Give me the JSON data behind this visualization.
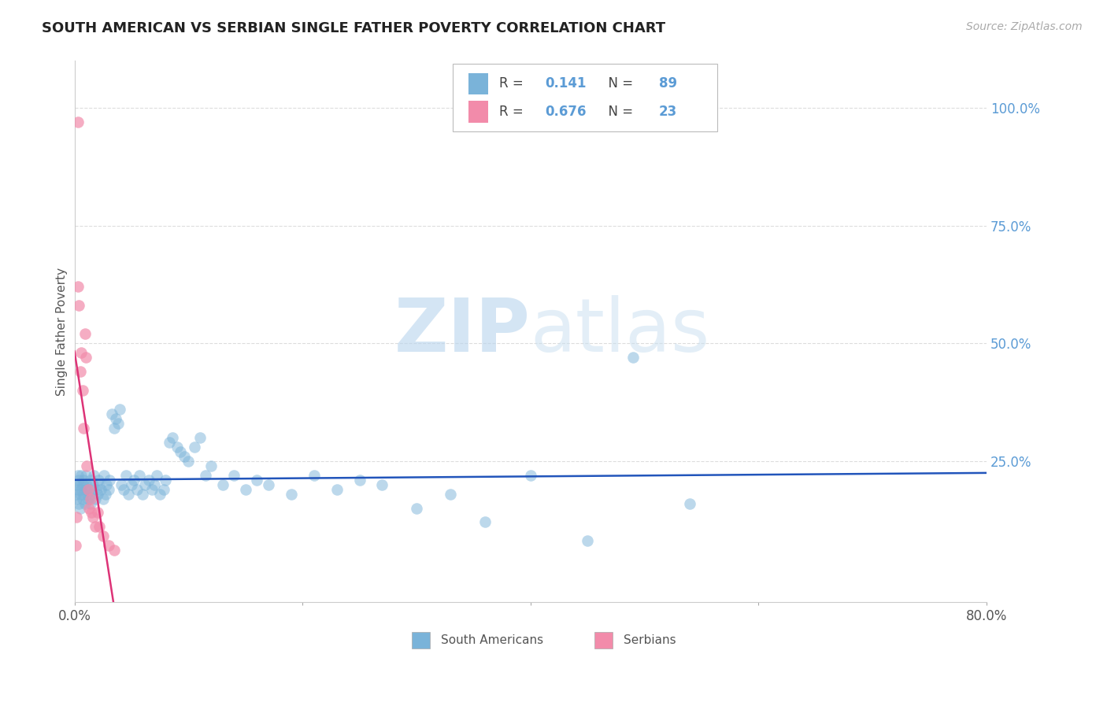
{
  "title": "SOUTH AMERICAN VS SERBIAN SINGLE FATHER POVERTY CORRELATION CHART",
  "source": "Source: ZipAtlas.com",
  "ylabel": "Single Father Poverty",
  "watermark_zip": "ZIP",
  "watermark_atlas": "atlas",
  "xlim": [
    0.0,
    0.8
  ],
  "ylim": [
    -0.05,
    1.1
  ],
  "xtick_positions": [
    0.0,
    0.2,
    0.4,
    0.6,
    0.8
  ],
  "xtick_labels": [
    "0.0%",
    "",
    "",
    "",
    "80.0%"
  ],
  "ytick_vals": [
    1.0,
    0.75,
    0.5,
    0.25
  ],
  "ytick_labels": [
    "100.0%",
    "75.0%",
    "50.0%",
    "25.0%"
  ],
  "blue_color": "#7ab3d9",
  "pink_color": "#f28baa",
  "blue_line_color": "#2255bb",
  "pink_line_color": "#dd3377",
  "grid_color": "#dddddd",
  "title_color": "#222222",
  "right_tick_color": "#5b9bd5",
  "legend_R1": "0.141",
  "legend_N1": "89",
  "legend_R2": "0.676",
  "legend_N2": "23",
  "south_american_x": [
    0.001,
    0.002,
    0.002,
    0.003,
    0.003,
    0.004,
    0.004,
    0.005,
    0.005,
    0.005,
    0.006,
    0.006,
    0.007,
    0.007,
    0.008,
    0.008,
    0.009,
    0.01,
    0.01,
    0.011,
    0.011,
    0.012,
    0.013,
    0.014,
    0.014,
    0.015,
    0.016,
    0.017,
    0.018,
    0.019,
    0.02,
    0.021,
    0.022,
    0.023,
    0.025,
    0.026,
    0.027,
    0.028,
    0.03,
    0.031,
    0.033,
    0.035,
    0.036,
    0.038,
    0.04,
    0.041,
    0.043,
    0.045,
    0.047,
    0.05,
    0.052,
    0.055,
    0.057,
    0.06,
    0.062,
    0.065,
    0.068,
    0.07,
    0.072,
    0.075,
    0.078,
    0.08,
    0.083,
    0.086,
    0.09,
    0.093,
    0.096,
    0.1,
    0.105,
    0.11,
    0.115,
    0.12,
    0.13,
    0.14,
    0.15,
    0.16,
    0.17,
    0.19,
    0.21,
    0.23,
    0.25,
    0.27,
    0.3,
    0.33,
    0.36,
    0.4,
    0.45,
    0.49,
    0.54
  ],
  "south_american_y": [
    0.18,
    0.2,
    0.17,
    0.19,
    0.22,
    0.16,
    0.21,
    0.18,
    0.2,
    0.15,
    0.19,
    0.22,
    0.17,
    0.2,
    0.18,
    0.21,
    0.16,
    0.19,
    0.22,
    0.18,
    0.2,
    0.17,
    0.19,
    0.21,
    0.16,
    0.18,
    0.2,
    0.22,
    0.17,
    0.19,
    0.18,
    0.21,
    0.2,
    0.19,
    0.17,
    0.22,
    0.18,
    0.2,
    0.19,
    0.21,
    0.35,
    0.32,
    0.34,
    0.33,
    0.36,
    0.2,
    0.19,
    0.22,
    0.18,
    0.2,
    0.21,
    0.19,
    0.22,
    0.18,
    0.2,
    0.21,
    0.19,
    0.2,
    0.22,
    0.18,
    0.19,
    0.21,
    0.29,
    0.3,
    0.28,
    0.27,
    0.26,
    0.25,
    0.28,
    0.3,
    0.22,
    0.24,
    0.2,
    0.22,
    0.19,
    0.21,
    0.2,
    0.18,
    0.22,
    0.19,
    0.21,
    0.2,
    0.15,
    0.18,
    0.12,
    0.22,
    0.08,
    0.47,
    0.16
  ],
  "serbian_x": [
    0.001,
    0.002,
    0.003,
    0.003,
    0.004,
    0.005,
    0.006,
    0.007,
    0.008,
    0.009,
    0.01,
    0.011,
    0.012,
    0.013,
    0.014,
    0.015,
    0.016,
    0.018,
    0.02,
    0.022,
    0.025,
    0.03,
    0.035
  ],
  "serbian_y": [
    0.07,
    0.13,
    0.97,
    0.62,
    0.58,
    0.44,
    0.48,
    0.4,
    0.32,
    0.52,
    0.47,
    0.24,
    0.19,
    0.15,
    0.17,
    0.14,
    0.13,
    0.11,
    0.14,
    0.11,
    0.09,
    0.07,
    0.06
  ]
}
